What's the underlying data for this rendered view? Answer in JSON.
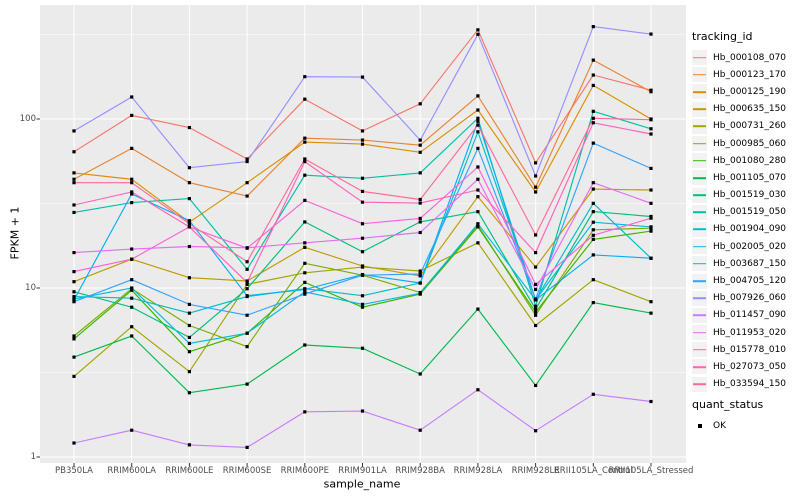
{
  "figure": {
    "background": "#FFFFFF",
    "panel_background": "#EBEBEB",
    "gridline_color": "#FFFFFF",
    "axis_text_color": "#4D4D4D",
    "tick_color": "#333333",
    "point_color": "#000000"
  },
  "chart_data": {
    "type": "line",
    "title": "",
    "xlabel": "sample_name",
    "ylabel": "FPKM + 1",
    "y_scale": "log10",
    "ylim": [
      1,
      470
    ],
    "grid": "on",
    "y_major_ticks": [
      {
        "label": "1",
        "value": 1
      },
      {
        "label": "10",
        "value": 10
      },
      {
        "label": "100",
        "value": 100
      }
    ],
    "y_minor_gridlines": [
      3.162,
      31.62,
      316.2
    ],
    "legend_position": "right",
    "legend_title": "tracking_id",
    "legend2_title": "quant_status",
    "legend2_items": [
      {
        "label": "OK",
        "marker": "black-square"
      }
    ],
    "categories": [
      "PB350LA",
      "RRIM600LA",
      "RRIM600LE",
      "RRIM600SE",
      "RRIM600PE",
      "RRIM901LA",
      "RRIM928BA",
      "RRIM928LA",
      "RRIM928LE",
      "RRII105LA_Control",
      "RRII105LA_Stressed"
    ],
    "series": [
      {
        "name": "Hb_000108_070",
        "color": "#F8766D",
        "values": [
          64,
          105,
          89,
          58,
          131,
          85,
          123,
          337,
          55,
          182,
          148
        ]
      },
      {
        "name": "Hb_000123_170",
        "color": "#EA8331",
        "values": [
          44,
          67,
          42,
          35,
          77,
          75,
          70,
          137,
          39.5,
          223,
          145
        ]
      },
      {
        "name": "Hb_000125_190",
        "color": "#D89000",
        "values": [
          48,
          44,
          24.5,
          42,
          73,
          71,
          63.5,
          113,
          37,
          158,
          100
        ]
      },
      {
        "name": "Hb_000635_150",
        "color": "#C09B00",
        "values": [
          10.9,
          14.8,
          11.5,
          11,
          17.4,
          13.5,
          11.8,
          34.7,
          13.3,
          38.5,
          38
        ]
      },
      {
        "name": "Hb_000731_260",
        "color": "#A3A500",
        "values": [
          3.0,
          5.9,
          3.2,
          10.5,
          12.3,
          13.3,
          12.6,
          18.5,
          6.0,
          11.2,
          8.3
        ]
      },
      {
        "name": "Hb_000985_060",
        "color": "#7CAE00",
        "values": [
          5.2,
          9.9,
          6.0,
          4.5,
          14.0,
          11.9,
          9.4,
          23.5,
          6.9,
          22.1,
          22.6
        ]
      },
      {
        "name": "Hb_001080_280",
        "color": "#39B600",
        "values": [
          5.0,
          9.7,
          4.2,
          5.4,
          10.8,
          7.7,
          9.2,
          23.0,
          7.2,
          19.4,
          21.7
        ]
      },
      {
        "name": "Hb_001105_070",
        "color": "#00BB4E",
        "values": [
          3.9,
          5.2,
          2.4,
          2.7,
          4.6,
          4.4,
          3.1,
          7.5,
          2.65,
          8.2,
          7.1
        ]
      },
      {
        "name": "Hb_001519_030",
        "color": "#00BF7D",
        "values": [
          9.5,
          7.7,
          5.1,
          9.9,
          24.6,
          16.4,
          24.6,
          28.3,
          7.5,
          28.3,
          26.5
        ]
      },
      {
        "name": "Hb_001519_050",
        "color": "#00C1A3",
        "values": [
          28,
          32,
          33.8,
          12.9,
          46.5,
          44.6,
          48,
          101,
          7.8,
          111,
          87.5
        ]
      },
      {
        "name": "Hb_001904_090",
        "color": "#00BFC4",
        "values": [
          8.9,
          8.7,
          7.1,
          8.9,
          9.9,
          9.0,
          10.7,
          84,
          8.5,
          31.7,
          15.0
        ]
      },
      {
        "name": "Hb_002005_020",
        "color": "#00BAE0",
        "values": [
          8.6,
          10.0,
          4.7,
          5.4,
          9.5,
          8.0,
          9.3,
          24,
          8.5,
          24.5,
          23
        ]
      },
      {
        "name": "Hb_003687_150",
        "color": "#00B0F6",
        "values": [
          8.5,
          36,
          25,
          9.0,
          9.8,
          12,
          10.7,
          97,
          8.5,
          15.7,
          15.0
        ]
      },
      {
        "name": "Hb_004705_120",
        "color": "#35A2FF",
        "values": [
          8.3,
          11.2,
          8.0,
          6.9,
          9.2,
          11.9,
          12.1,
          67,
          8.6,
          72,
          51
        ]
      },
      {
        "name": "Hb_007926_060",
        "color": "#9590FF",
        "values": [
          85,
          135,
          51.5,
          56,
          178,
          177,
          75,
          317,
          46,
          352,
          318
        ]
      },
      {
        "name": "Hb_011457_090",
        "color": "#C77CFF",
        "values": [
          1.21,
          1.44,
          1.18,
          1.14,
          1.85,
          1.87,
          1.44,
          2.5,
          1.43,
          2.35,
          2.13
        ]
      },
      {
        "name": "Hb_011953_020",
        "color": "#E76BF3",
        "values": [
          16.2,
          17,
          17.6,
          17.3,
          18.5,
          19.7,
          21.3,
          44,
          9.8,
          42,
          31.7
        ]
      },
      {
        "name": "Hb_015778_010",
        "color": "#FA62DB",
        "values": [
          12.5,
          14.8,
          23,
          17.2,
          33,
          24,
          25.8,
          52,
          10.5,
          20.5,
          25.9
        ]
      },
      {
        "name": "Hb_027073_050",
        "color": "#FF62BC",
        "values": [
          31,
          37,
          23,
          10.8,
          56,
          32.2,
          31.8,
          38,
          16.2,
          95,
          81.5
        ]
      },
      {
        "name": "Hb_033594_150",
        "color": "#FF6A98",
        "values": [
          42,
          42,
          24,
          14.3,
          58,
          37.3,
          33.4,
          92,
          20.6,
          101,
          99
        ]
      }
    ]
  }
}
